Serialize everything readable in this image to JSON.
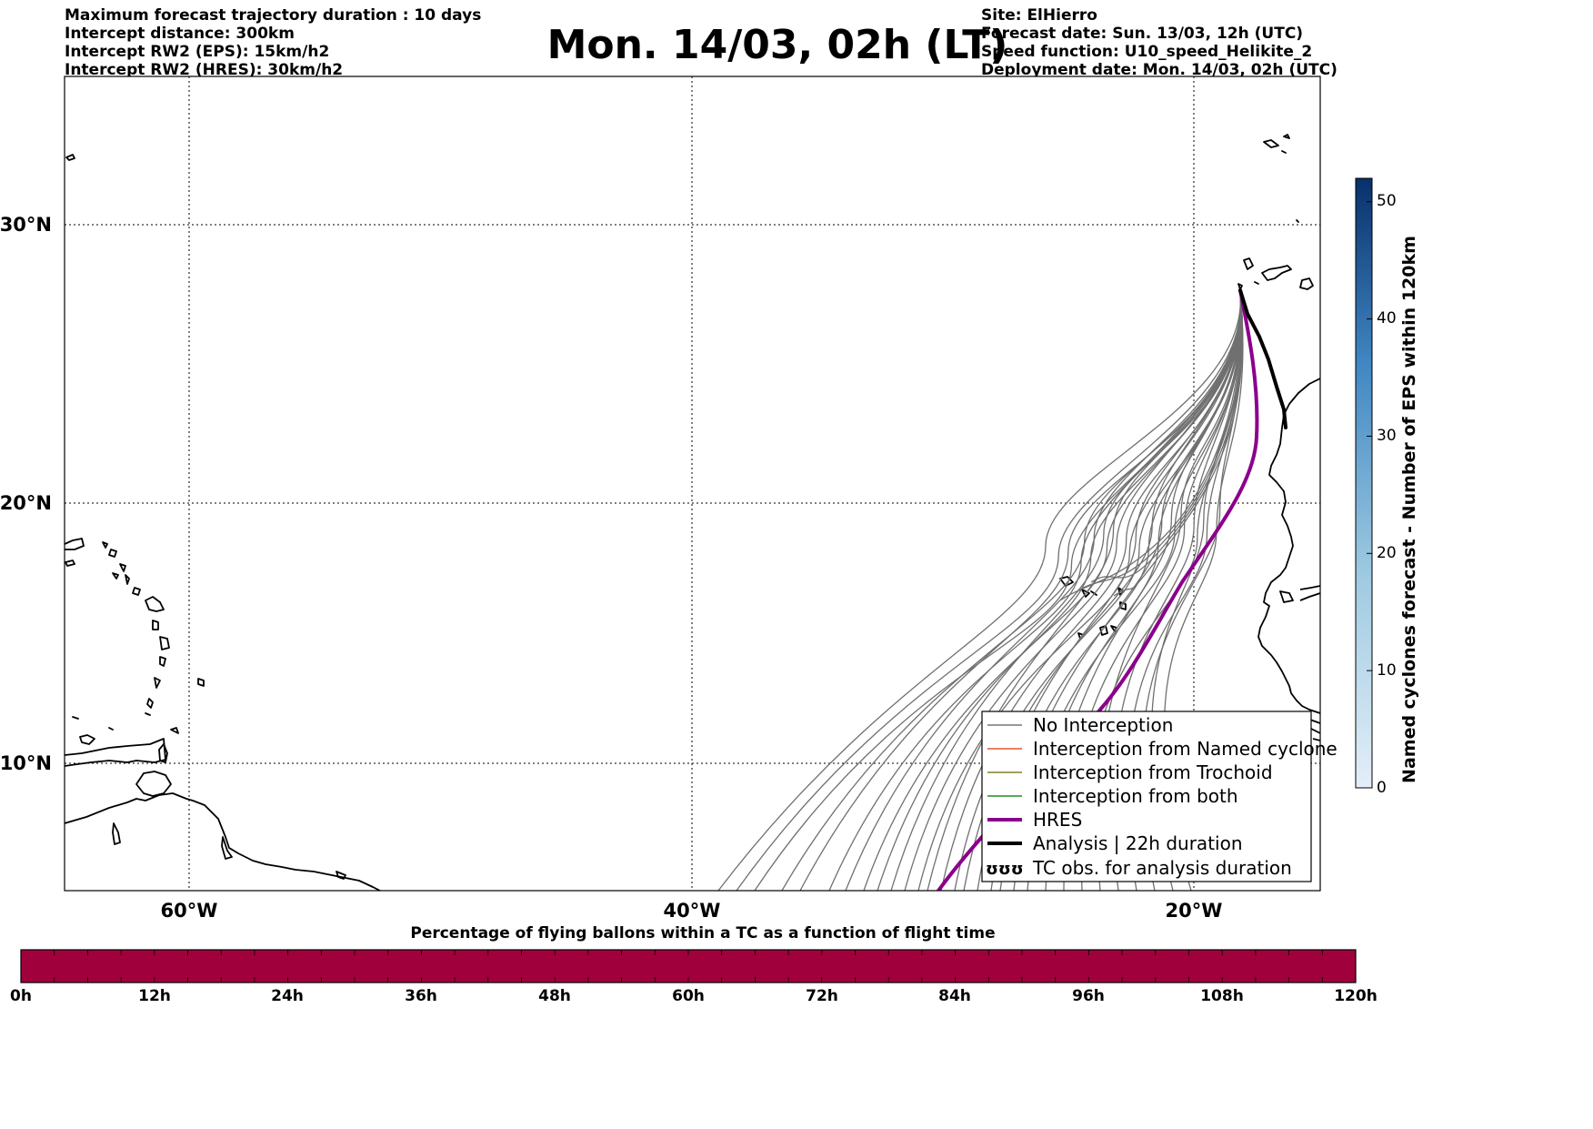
{
  "header": {
    "left": [
      "Maximum forecast trajectory duration : 10 days",
      "Intercept distance: 300km",
      "Intercept RW2 (EPS):  15km/h2",
      "Intercept RW2 (HRES): 30km/h2"
    ],
    "title": "Mon. 14/03, 02h (LT)",
    "right": [
      "Site: ElHierro",
      "Forecast date: Sun. 13/03, 12h (UTC)",
      "Speed function: U10_speed_Helikite_2",
      "Deployment date: Mon. 14/03, 02h (UTC)"
    ]
  },
  "map": {
    "lat_ticks": [
      "30°N",
      "20°N",
      "10°N"
    ],
    "lon_ticks": [
      "60°W",
      "40°W",
      "20°W"
    ],
    "extent": {
      "lon_min": -65,
      "lon_max": -15,
      "lat_min": 4.6,
      "lat_max": 35.3
    },
    "site": {
      "name": "ElHierro",
      "lon": -18.0,
      "lat": 27.7
    }
  },
  "legend": {
    "items": [
      {
        "label": "No Interception",
        "color": "#777777"
      },
      {
        "label": "Interception from Named cyclone",
        "color": "#e8542a"
      },
      {
        "label": "Interception from Trochoid",
        "color": "#808020"
      },
      {
        "label": "Interception from both",
        "color": "#228b22"
      },
      {
        "label": "HRES",
        "color": "#8b008b"
      },
      {
        "label": "Analysis | 22h duration",
        "color": "#000000"
      },
      {
        "label": "TC obs. for analysis duration",
        "color": "#000000",
        "symbol": "ʊʊʊ"
      }
    ]
  },
  "colorbar_right": {
    "label": "Named cyclones forecast - Number of EPS within 120km",
    "ticks": [
      "0",
      "10",
      "20",
      "30",
      "40",
      "50"
    ],
    "min": 0,
    "max": 52,
    "colors": [
      "#e3eef8",
      "#08306b"
    ]
  },
  "colorbar_bottom": {
    "title": "Percentage of flying ballons within a TC as a function of flight time",
    "ticks": [
      "0h",
      "12h",
      "24h",
      "36h",
      "48h",
      "60h",
      "72h",
      "84h",
      "96h",
      "108h",
      "120h"
    ],
    "color": "#a0003c"
  }
}
